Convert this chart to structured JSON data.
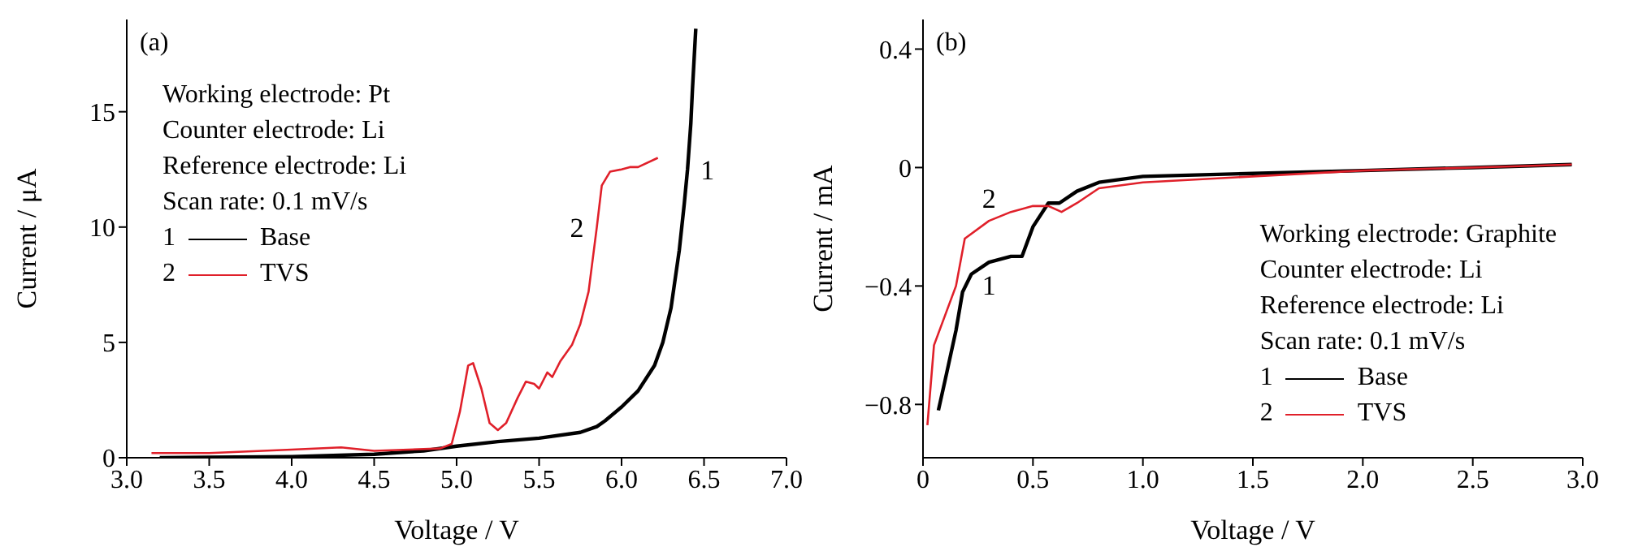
{
  "chart_data": [
    {
      "type": "line",
      "title": "(a)",
      "xlabel": "Voltage / V",
      "ylabel": "Current / μA",
      "xlim": [
        3.0,
        7.0
      ],
      "xticks": [
        {
          "value": 3,
          "label": "3.0"
        },
        3.5,
        {
          "value": 4,
          "label": "4.0"
        },
        4.5,
        {
          "value": 5,
          "label": "5.0"
        },
        5.5,
        {
          "value": 6,
          "label": "6.0"
        },
        6.5,
        {
          "value": 7,
          "label": "7.0"
        }
      ],
      "ylim": [
        0,
        19
      ],
      "yticks": [
        0,
        5,
        10,
        15
      ],
      "legend": "left",
      "annotations": [
        "Working electrode: Pt",
        "Counter electrode: Li",
        "Reference electrode: Li",
        "Scan rate: 0.1 mV/s",
        {
          "text": "1",
          "x": 6.4,
          "y": 12.5
        },
        {
          "text": "2",
          "x": 5.85,
          "y": 10.0
        }
      ],
      "series": [
        {
          "name": "Base",
          "color": "#000000",
          "x": [
            3.2,
            3.5,
            4.0,
            4.5,
            4.8,
            5.0,
            5.25,
            5.5,
            5.75,
            5.85,
            5.9,
            6.0,
            6.1,
            6.2,
            6.25,
            6.3,
            6.35,
            6.38,
            6.4,
            6.42,
            6.43,
            6.45
          ],
          "values": [
            0,
            0.02,
            0.05,
            0.15,
            0.3,
            0.5,
            0.7,
            0.85,
            1.1,
            1.35,
            1.6,
            2.2,
            2.9,
            4.0,
            5.0,
            6.5,
            9.0,
            11.0,
            12.5,
            14.5,
            16.0,
            18.6
          ]
        },
        {
          "name": "TVS",
          "color": "#e0202a",
          "x": [
            3.15,
            3.5,
            4.0,
            4.3,
            4.5,
            4.9,
            4.97,
            5.02,
            5.07,
            5.1,
            5.15,
            5.2,
            5.25,
            5.3,
            5.37,
            5.42,
            5.47,
            5.5,
            5.55,
            5.58,
            5.63,
            5.7,
            5.75,
            5.8,
            5.85,
            5.88,
            5.93,
            6.0,
            6.05,
            6.1,
            6.22
          ],
          "values": [
            0.2,
            0.2,
            0.35,
            0.45,
            0.3,
            0.4,
            0.6,
            2.0,
            4.0,
            4.1,
            3.0,
            1.5,
            1.2,
            1.5,
            2.6,
            3.3,
            3.2,
            3.0,
            3.7,
            3.5,
            4.2,
            4.9,
            5.8,
            7.2,
            10.0,
            11.8,
            12.4,
            12.5,
            12.6,
            12.6,
            13.0
          ]
        }
      ]
    },
    {
      "type": "line",
      "title": "(b)",
      "xlabel": "Voltage / V",
      "ylabel": "Current / mA",
      "xlim": [
        0,
        3.0
      ],
      "xticks": [
        0,
        0.5,
        {
          "value": 1,
          "label": "1.0"
        },
        1.5,
        {
          "value": 2,
          "label": "2.0"
        },
        2.5,
        {
          "value": 3,
          "label": "3.0"
        }
      ],
      "ylim": [
        -0.98,
        0.5
      ],
      "yticks": [
        {
          "value": -0.8,
          "label": "−0.8"
        },
        {
          "value": -0.4,
          "label": "−0.4"
        },
        0,
        0.4
      ],
      "legend": "bottom right",
      "annotations": [
        "Working electrode: Graphite",
        "Counter electrode: Li",
        "Reference electrode: Li",
        "Scan rate: 0.1 mV/s",
        {
          "text": "1",
          "x": 0.3,
          "y": -0.32
        },
        {
          "text": "2",
          "x": 0.3,
          "y": -0.18
        }
      ],
      "series": [
        {
          "name": "Base",
          "color": "#000000",
          "x": [
            0.07,
            0.1,
            0.15,
            0.18,
            0.22,
            0.3,
            0.4,
            0.45,
            0.5,
            0.57,
            0.62,
            0.7,
            0.8,
            1.0,
            1.5,
            2.0,
            2.5,
            2.95
          ],
          "values": [
            -0.82,
            -0.72,
            -0.55,
            -0.42,
            -0.36,
            -0.32,
            -0.3,
            -0.3,
            -0.2,
            -0.12,
            -0.12,
            -0.08,
            -0.05,
            -0.03,
            -0.02,
            -0.01,
            0,
            0.01
          ]
        },
        {
          "name": "TVS",
          "color": "#e0202a",
          "x": [
            0.02,
            0.05,
            0.1,
            0.15,
            0.19,
            0.3,
            0.4,
            0.5,
            0.57,
            0.63,
            0.7,
            0.8,
            1.0,
            1.5,
            2.0,
            2.5,
            2.95
          ],
          "values": [
            -0.87,
            -0.6,
            -0.5,
            -0.4,
            -0.24,
            -0.18,
            -0.15,
            -0.13,
            -0.13,
            -0.15,
            -0.12,
            -0.07,
            -0.05,
            -0.03,
            -0.01,
            0,
            0.01
          ]
        }
      ]
    }
  ]
}
